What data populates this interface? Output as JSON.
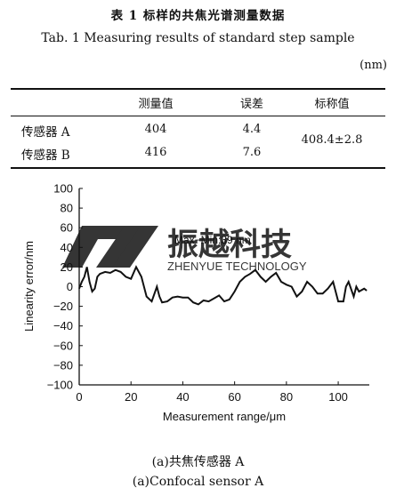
{
  "table": {
    "title_cn": "表 1   标样的共焦光谱测量数据",
    "title_en": "Tab. 1   Measuring results of standard step sample",
    "unit": "(nm)",
    "headers": [
      "",
      "测量值",
      "误差",
      "标称值"
    ],
    "rows": [
      {
        "sensor": "传感器 A",
        "measured": "404",
        "error": "4.4"
      },
      {
        "sensor": "传感器 B",
        "measured": "416",
        "error": "7.6"
      }
    ],
    "nominal": "408.4±2.8"
  },
  "watermark": {
    "brand_cn": "振越科技",
    "brand_en": "ZHENYUE TECHNOLOGY"
  },
  "chart_data": {
    "type": "line",
    "xlabel": "Measurement range/μm",
    "ylabel": "Linearity error/nm",
    "xlim": [
      0,
      112
    ],
    "ylim": [
      -100,
      100
    ],
    "xticks": [
      0,
      20,
      40,
      60,
      80,
      100
    ],
    "yticks": [
      100,
      80,
      60,
      40,
      20,
      0,
      -20,
      -40,
      -60,
      -80,
      -100
    ],
    "annotation": "Max−Min:39 nm",
    "x": [
      0,
      1,
      2,
      3,
      4,
      5,
      6,
      7,
      8,
      10,
      12,
      14,
      16,
      18,
      20,
      22,
      24,
      26,
      28,
      30,
      31,
      32,
      34,
      36,
      38,
      40,
      42,
      44,
      46,
      48,
      50,
      52,
      54,
      56,
      58,
      60,
      62,
      64,
      66,
      68,
      70,
      72,
      74,
      76,
      78,
      80,
      82,
      84,
      86,
      88,
      90,
      92,
      94,
      96,
      98,
      100,
      102,
      103,
      104,
      106,
      107,
      108,
      110,
      111
    ],
    "y": [
      -2,
      5,
      10,
      20,
      5,
      -5,
      -2,
      10,
      13,
      15,
      14,
      17,
      15,
      10,
      8,
      20,
      10,
      -10,
      -15,
      0,
      -10,
      -16,
      -15,
      -11,
      -10,
      -11,
      -11,
      -16,
      -18,
      -14,
      -15,
      -12,
      -9,
      -15,
      -13,
      -5,
      5,
      10,
      13,
      17,
      10,
      5,
      10,
      14,
      5,
      2,
      0,
      -10,
      -5,
      5,
      0,
      -7,
      -7,
      -2,
      5,
      -15,
      -15,
      0,
      5,
      -10,
      0,
      -5,
      -2,
      -4
    ]
  },
  "captions": {
    "cn": "(a)共焦传感器 A",
    "en": "(a)Confocal sensor A"
  }
}
